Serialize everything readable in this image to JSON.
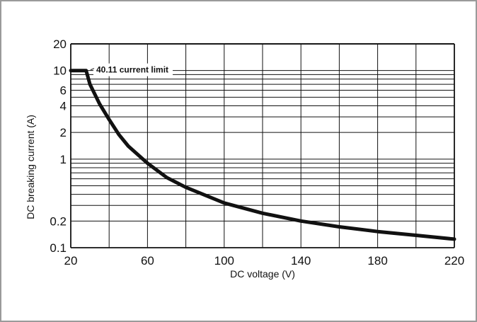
{
  "chart_data": {
    "type": "line",
    "title": "",
    "xlabel": "DC voltage (V)",
    "ylabel": "DC breaking current (A)",
    "xlim": [
      20,
      220
    ],
    "ylim": [
      0.1,
      20
    ],
    "yscale": "log",
    "grid": true,
    "x_ticks": [
      "20",
      "60",
      "100",
      "140",
      "180",
      "220"
    ],
    "y_ticks": [
      {
        "value": 20,
        "label": "20"
      },
      {
        "value": 10,
        "label": "10"
      },
      {
        "value": 6,
        "label": "6"
      },
      {
        "value": 4,
        "label": "4"
      },
      {
        "value": 2,
        "label": "2"
      },
      {
        "value": 1,
        "label": "1"
      },
      {
        "value": 0.2,
        "label": "0.2"
      },
      {
        "value": 0.1,
        "label": "0.1"
      }
    ],
    "annotation": "40.11 current limit",
    "series": [
      {
        "color": "#111111",
        "x": [
          20,
          28,
          30,
          35,
          40,
          45,
          50,
          60,
          70,
          80,
          100,
          120,
          140,
          160,
          180,
          200,
          220
        ],
        "y": [
          10,
          10,
          7,
          4.2,
          2.8,
          1.9,
          1.4,
          0.9,
          0.62,
          0.48,
          0.32,
          0.245,
          0.2,
          0.172,
          0.152,
          0.138,
          0.125
        ]
      }
    ]
  }
}
